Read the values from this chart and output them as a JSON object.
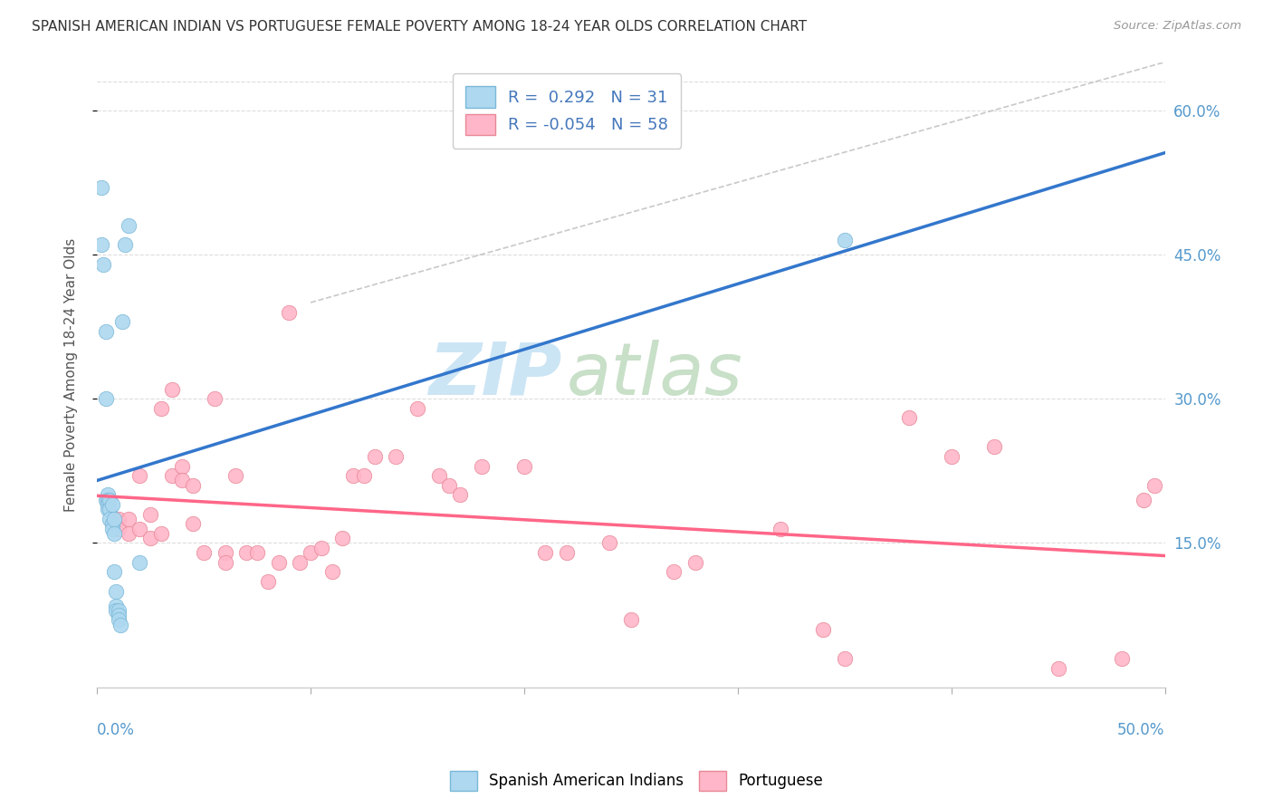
{
  "title": "SPANISH AMERICAN INDIAN VS PORTUGUESE FEMALE POVERTY AMONG 18-24 YEAR OLDS CORRELATION CHART",
  "source": "Source: ZipAtlas.com",
  "ylabel": "Female Poverty Among 18-24 Year Olds",
  "yticks": [
    "15.0%",
    "30.0%",
    "45.0%",
    "60.0%"
  ],
  "ytick_vals": [
    0.15,
    0.3,
    0.45,
    0.6
  ],
  "legend_label1": "Spanish American Indians",
  "legend_label2": "Portuguese",
  "R1": 0.292,
  "N1": 31,
  "R2": -0.054,
  "N2": 58,
  "color1": "#add8f0",
  "color2": "#ffb6c8",
  "color1_edge": "#7ab8d8",
  "color2_edge": "#e88898",
  "trend1_color": "#3377cc",
  "trend2_color": "#ff6688",
  "blue_x": [
    0.002,
    0.002,
    0.003,
    0.004,
    0.004,
    0.004,
    0.005,
    0.005,
    0.005,
    0.005,
    0.006,
    0.006,
    0.006,
    0.007,
    0.007,
    0.007,
    0.008,
    0.008,
    0.008,
    0.009,
    0.009,
    0.009,
    0.01,
    0.01,
    0.01,
    0.011,
    0.012,
    0.013,
    0.015,
    0.35,
    0.02
  ],
  "blue_y": [
    0.52,
    0.46,
    0.44,
    0.37,
    0.3,
    0.195,
    0.2,
    0.195,
    0.19,
    0.185,
    0.195,
    0.185,
    0.175,
    0.19,
    0.17,
    0.165,
    0.175,
    0.16,
    0.12,
    0.1,
    0.085,
    0.08,
    0.08,
    0.075,
    0.07,
    0.065,
    0.38,
    0.46,
    0.48,
    0.465,
    0.13
  ],
  "pink_x": [
    0.005,
    0.01,
    0.01,
    0.015,
    0.015,
    0.02,
    0.02,
    0.025,
    0.025,
    0.03,
    0.03,
    0.035,
    0.035,
    0.04,
    0.04,
    0.045,
    0.045,
    0.05,
    0.055,
    0.06,
    0.06,
    0.065,
    0.07,
    0.075,
    0.08,
    0.085,
    0.09,
    0.095,
    0.1,
    0.105,
    0.11,
    0.115,
    0.12,
    0.125,
    0.13,
    0.14,
    0.15,
    0.16,
    0.165,
    0.17,
    0.18,
    0.2,
    0.21,
    0.22,
    0.24,
    0.25,
    0.27,
    0.28,
    0.32,
    0.34,
    0.35,
    0.38,
    0.4,
    0.42,
    0.45,
    0.48,
    0.49,
    0.495
  ],
  "pink_y": [
    0.195,
    0.175,
    0.165,
    0.175,
    0.16,
    0.22,
    0.165,
    0.18,
    0.155,
    0.29,
    0.16,
    0.31,
    0.22,
    0.23,
    0.215,
    0.21,
    0.17,
    0.14,
    0.3,
    0.14,
    0.13,
    0.22,
    0.14,
    0.14,
    0.11,
    0.13,
    0.39,
    0.13,
    0.14,
    0.145,
    0.12,
    0.155,
    0.22,
    0.22,
    0.24,
    0.24,
    0.29,
    0.22,
    0.21,
    0.2,
    0.23,
    0.23,
    0.14,
    0.14,
    0.15,
    0.07,
    0.12,
    0.13,
    0.165,
    0.06,
    0.03,
    0.28,
    0.24,
    0.25,
    0.02,
    0.03,
    0.195,
    0.21
  ],
  "xlim": [
    0.0,
    0.5
  ],
  "ylim": [
    0.0,
    0.65
  ],
  "background_color": "#ffffff",
  "grid_color": "#dddddd",
  "watermark_zi": "ZIP",
  "watermark_atlas": "atlas",
  "watermark_color_zi": "#cce5f5",
  "watermark_color_atlas": "#c8dfc8"
}
